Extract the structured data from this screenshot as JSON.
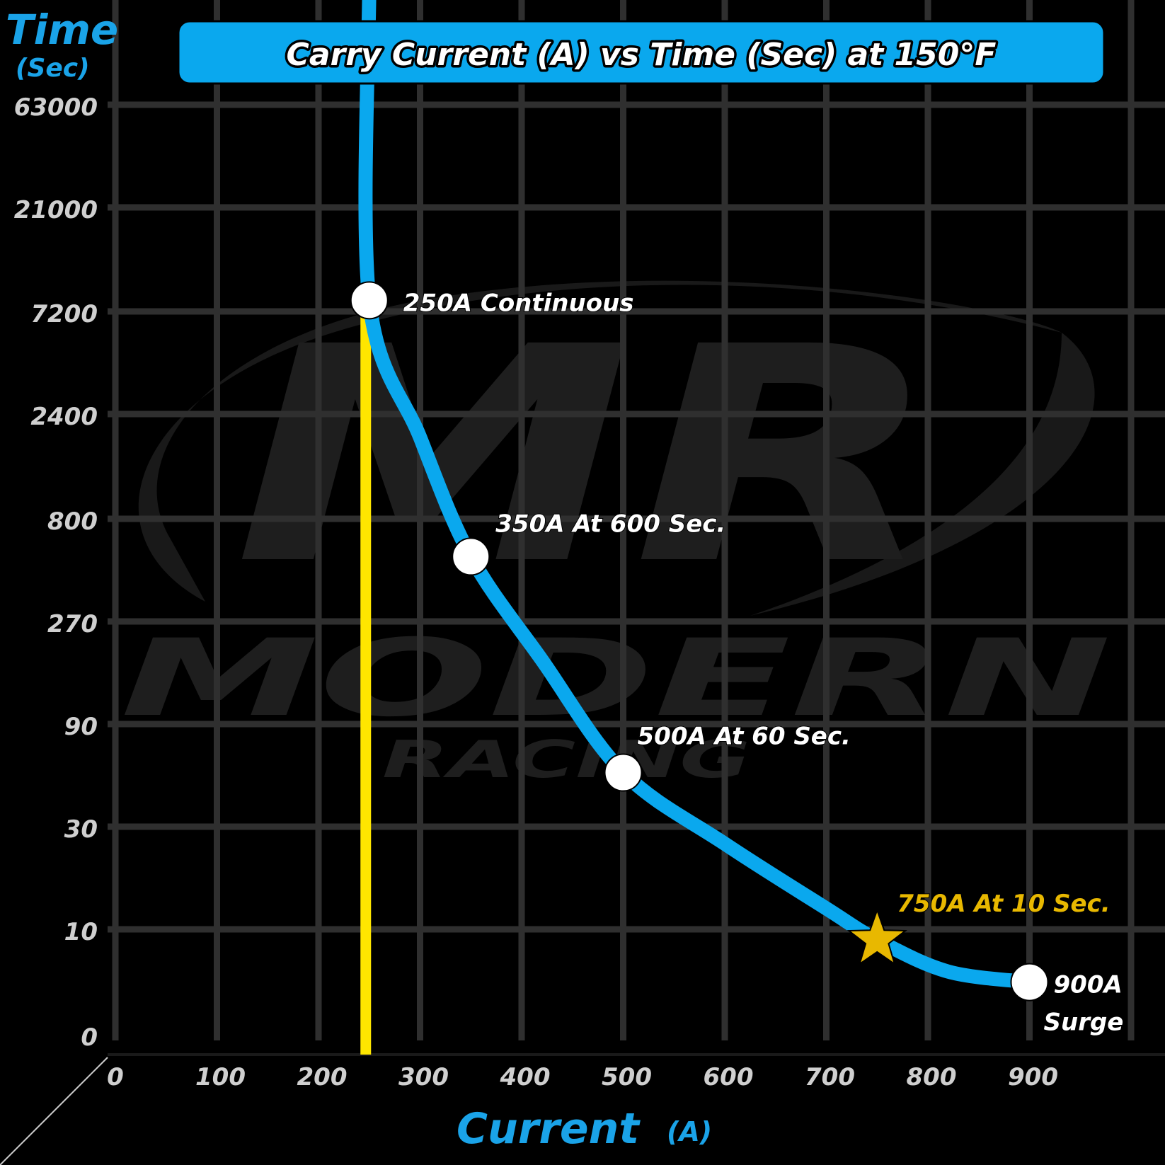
{
  "colors": {
    "background": "#000000",
    "grid": "#2f2f2f",
    "curve": "#0aa8ee",
    "marker_line": "#ffe600",
    "title_box": "#0aa8ee",
    "axis_title": "#1aa3e8",
    "tick_label": "#cfcfcf",
    "highlight": "#e8b800",
    "point": "#ffffff"
  },
  "watermark": {
    "logo_icon": "mr-logo-swoosh",
    "line1": "MODERN",
    "line2": "RACING"
  },
  "chart_data": {
    "type": "line",
    "title": "Carry Current (A) vs Time (Sec) at 150°F",
    "xlabel": "Current",
    "xlabel_unit": "(A)",
    "ylabel": "Time",
    "ylabel_unit": "(Sec)",
    "x_ticks": [
      0,
      100,
      200,
      300,
      400,
      500,
      600,
      700,
      800,
      900
    ],
    "y_ticks": [
      "0",
      "10",
      "30",
      "90",
      "270",
      "800",
      "2400",
      "7200",
      "21000",
      "63000"
    ],
    "grid": true,
    "x_range": [
      0,
      1000
    ],
    "reference_line": {
      "x": 250,
      "color": "#ffe600"
    },
    "series": [
      {
        "points": [
          {
            "x": 250,
            "y": 100000
          },
          {
            "x": 250,
            "y": 9000
          },
          {
            "x": 300,
            "y": 2100
          },
          {
            "x": 350,
            "y": 600
          },
          {
            "x": 420,
            "y": 200
          },
          {
            "x": 500,
            "y": 60
          },
          {
            "x": 600,
            "y": 28
          },
          {
            "x": 700,
            "y": 14
          },
          {
            "x": 750,
            "y": 10
          },
          {
            "x": 820,
            "y": 7
          },
          {
            "x": 900,
            "y": 6
          }
        ]
      }
    ],
    "annotations": [
      {
        "x": 250,
        "y": 9000,
        "label": "250A Continuous",
        "marker": "circle",
        "highlight": false
      },
      {
        "x": 350,
        "y": 600,
        "label": "350A At 600 Sec.",
        "marker": "circle",
        "highlight": false
      },
      {
        "x": 500,
        "y": 60,
        "label": "500A At 60 Sec.",
        "marker": "circle",
        "highlight": false
      },
      {
        "x": 750,
        "y": 10,
        "label": "750A At 10 Sec.",
        "marker": "star",
        "highlight": true
      },
      {
        "x": 900,
        "y": 6,
        "label": "900A",
        "label2": "Surge",
        "marker": "circle",
        "highlight": false
      }
    ]
  }
}
